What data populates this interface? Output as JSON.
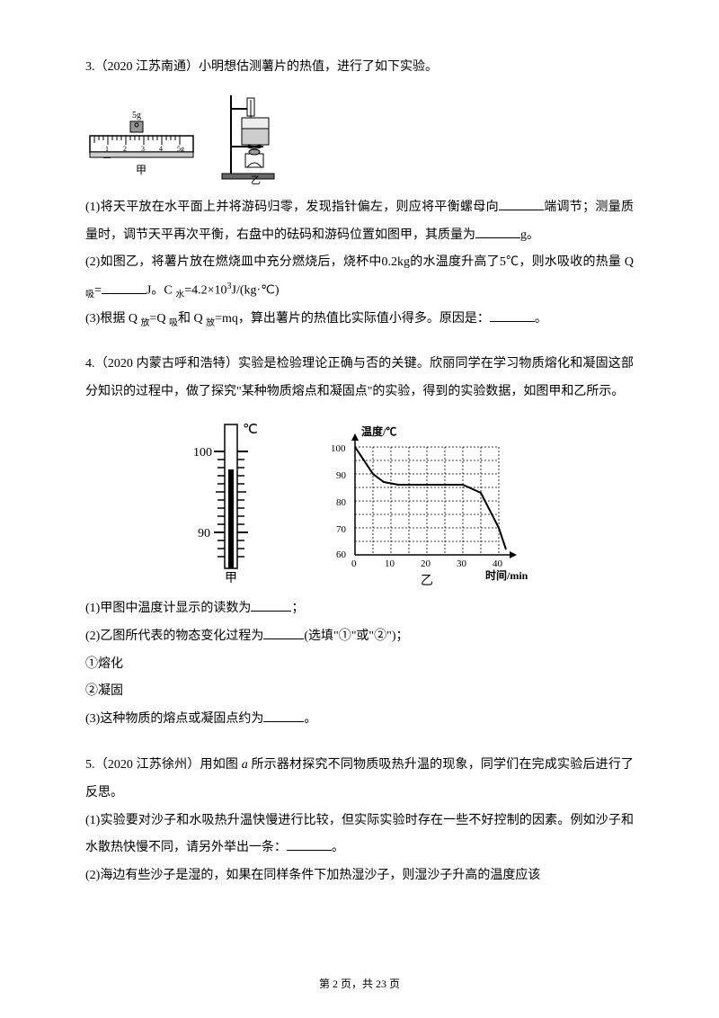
{
  "q3": {
    "header": "3.（2020 江苏南通）小明想估测薯片的热值，进行了如下实验。",
    "p1_a": "(1)将天平放在水平面上并将游码归零，发现指针偏左，则应将平衡螺母向",
    "p1_b": "端调节；测量质量时，调节天平再次平衡，右盘中的砝码和游码位置如图甲，其质量为",
    "p1_c": "g。",
    "p2_a": "(2)如图乙，将薯片放在燃烧皿中充分燃烧后，烧杯中0.2kg的水温度升高了5℃，则水吸收的热量 Q ",
    "p2_sub1": "吸",
    "p2_b": "=",
    "p2_c": "J。C ",
    "p2_sub2": "水",
    "p2_d": "=4.2×10",
    "p2_sup": "3",
    "p2_e": "J/(kg·℃)",
    "p3_a": "(3)根据 Q ",
    "p3_sub1": "放",
    "p3_b": "=Q ",
    "p3_sub2": "吸",
    "p3_c": "和 Q ",
    "p3_sub3": "放",
    "p3_d": "=mq，算出薯片的热值比实际值小得多。原因是：",
    "p3_e": "。",
    "ruler": {
      "weight_label": "5g",
      "bottom_label": "甲",
      "scale_max": "5g",
      "tick_labels": [
        "1",
        "2",
        "3",
        "4"
      ]
    },
    "stand": {
      "bottom_label": "乙"
    }
  },
  "q4": {
    "header": "4.（2020 内蒙古呼和浩特）实验是检验理论正确与否的关键。欣丽同学在学习物质熔化和凝固这部分知识的过程中，做了探究\"某种物质熔点和凝固点\"的实验，得到的实验数据，如图甲和乙所示。",
    "thermo": {
      "unit": "℃",
      "top_tick": "100",
      "bottom_tick": "90",
      "label": "甲"
    },
    "graph": {
      "ylabel": "温度/℃",
      "xlabel": "时间/min",
      "yticks": [
        "60",
        "70",
        "80",
        "90",
        "100"
      ],
      "xticks": [
        "0",
        "10",
        "20",
        "30",
        "40"
      ],
      "label": "乙",
      "curve": [
        [
          0,
          100
        ],
        [
          5,
          90
        ],
        [
          8,
          87
        ],
        [
          12,
          86
        ],
        [
          30,
          86
        ],
        [
          35,
          83
        ],
        [
          40,
          70
        ],
        [
          42,
          62
        ]
      ]
    },
    "p1_a": "(1)甲图中温度计显示的读数为",
    "p1_b": "；",
    "p2_a": "(2)乙图所代表的物态变化过程为",
    "p2_b": "(选填\"①\"或\"②\")；",
    "opt1": "①熔化",
    "opt2": "②凝固",
    "p3_a": "(3)这种物质的熔点或凝固点约为",
    "p3_b": "。"
  },
  "q5": {
    "header_a": "5.（2020 江苏徐州）用如图 ",
    "header_i": "a",
    "header_b": " 所示器材探究不同物质吸热升温的现象，同学们在完成实验后进行了反思。",
    "p1_a": "(1)实验要对沙子和水吸热升温快慢进行比较，但实际实验时存在一些不好控制的因素。例如沙子和水散热快慢不同，请另外举出一条：",
    "p1_b": "。",
    "p2": "(2)海边有些沙子是湿的，如果在同样条件下加热湿沙子，则湿沙子升高的温度应该"
  },
  "footer": {
    "prefix": "第 ",
    "page": "2",
    "mid": " 页，共 ",
    "total": "23",
    "suffix": " 页"
  },
  "style": {
    "stroke": "#000000",
    "fill_light": "#dddddd",
    "grid_dash": "2,2"
  }
}
